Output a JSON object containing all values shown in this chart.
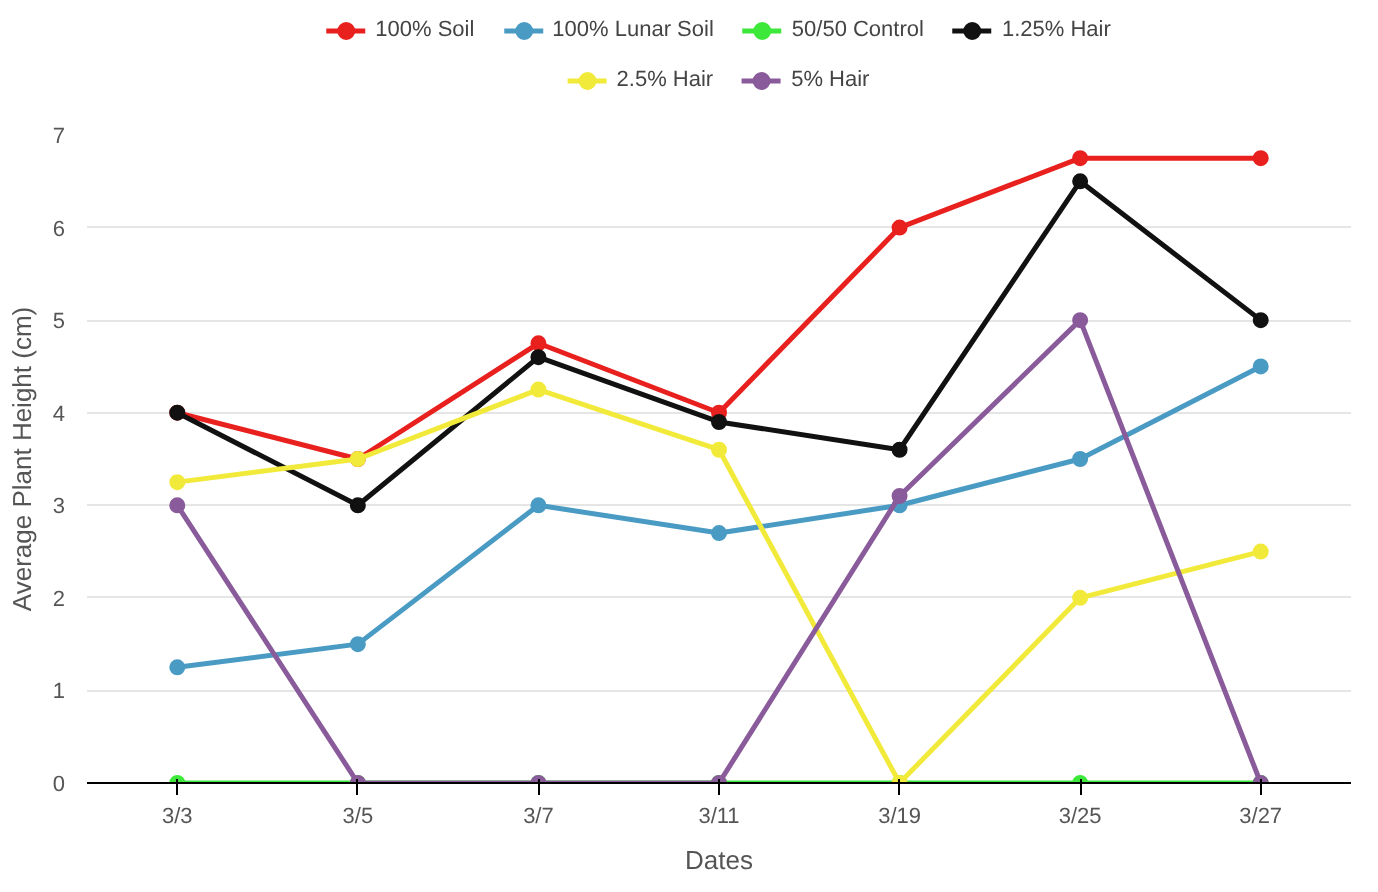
{
  "chart_data": {
    "type": "line",
    "xlabel": "Dates",
    "ylabel": "Average Plant Height (cm)",
    "categories": [
      "3/3",
      "3/5",
      "3/7",
      "3/11",
      "3/19",
      "3/25",
      "3/27"
    ],
    "series": [
      {
        "name": "100% Soil",
        "color": "#e8201e",
        "values": [
          4,
          3.5,
          4.75,
          4,
          6,
          6.75,
          6.75
        ]
      },
      {
        "name": "100% Lunar Soil",
        "color": "#4a9bc4",
        "values": [
          1.25,
          1.5,
          3,
          2.7,
          3,
          3.5,
          4.5
        ]
      },
      {
        "name": "50/50 Control",
        "color": "#3de83a",
        "values": [
          0,
          0,
          0,
          0,
          0,
          0,
          0
        ]
      },
      {
        "name": "1.25% Hair",
        "color": "#111111",
        "values": [
          4,
          3,
          4.6,
          3.9,
          3.6,
          6.5,
          5
        ]
      },
      {
        "name": "2.5% Hair",
        "color": "#f2ea3a",
        "values": [
          3.25,
          3.5,
          4.25,
          3.6,
          0,
          2,
          2.5
        ]
      },
      {
        "name": "5% Hair",
        "color": "#8a5b9a",
        "values": [
          3,
          0,
          0,
          0,
          3.1,
          5,
          0
        ]
      }
    ],
    "ylim": [
      0,
      7
    ],
    "yticks": [
      0,
      1,
      2,
      3,
      4,
      5,
      6,
      7
    ],
    "grid": "y",
    "legend": "top",
    "marker": "circle",
    "line_style": "solid"
  }
}
